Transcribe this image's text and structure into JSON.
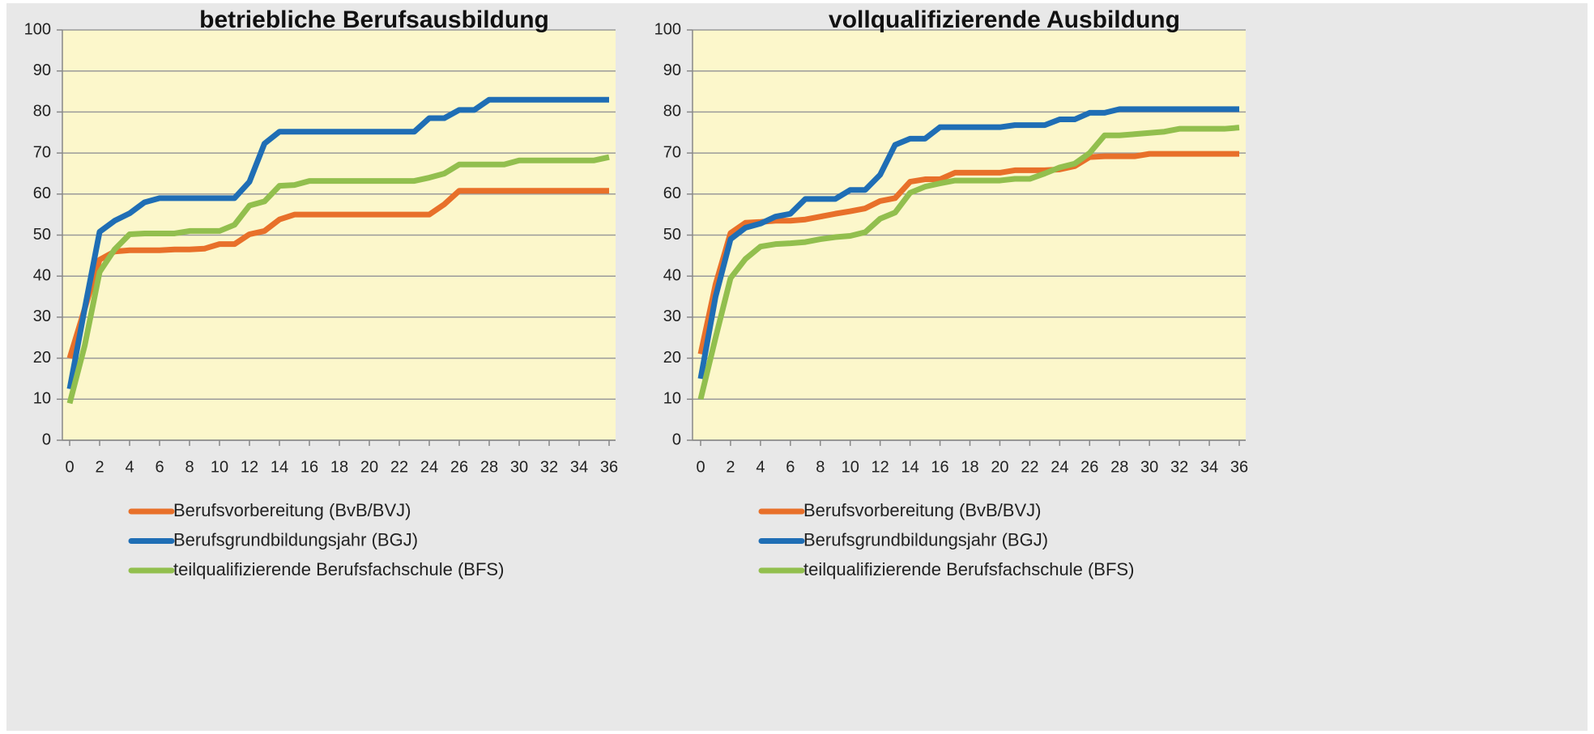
{
  "chart_data": [
    {
      "type": "line",
      "title": "betriebliche Berufsausbildung",
      "x": [
        0,
        1,
        2,
        3,
        4,
        5,
        6,
        7,
        8,
        9,
        10,
        11,
        12,
        13,
        14,
        15,
        16,
        17,
        18,
        19,
        20,
        21,
        22,
        23,
        24,
        25,
        26,
        27,
        28,
        29,
        30,
        31,
        32,
        33,
        34,
        35,
        36
      ],
      "xlim": [
        0,
        36
      ],
      "xticks": [
        0,
        2,
        4,
        6,
        8,
        10,
        12,
        14,
        16,
        18,
        20,
        22,
        24,
        26,
        28,
        30,
        32,
        34,
        36
      ],
      "ylim": [
        0,
        100
      ],
      "yticks": [
        0,
        10,
        20,
        30,
        40,
        50,
        60,
        70,
        80,
        90,
        100
      ],
      "grid": true,
      "series": [
        {
          "name": "Berufsvorbereitung (BvB/BVJ)",
          "color": "#e8702a",
          "values": [
            20,
            32,
            44,
            46,
            46.3,
            46.3,
            46.3,
            46.5,
            46.5,
            46.7,
            47.8,
            47.8,
            50.2,
            51,
            53.8,
            55,
            55,
            55,
            55,
            55,
            55,
            55,
            55,
            55,
            55,
            57.5,
            60.8,
            60.8,
            60.8,
            60.8,
            60.8,
            60.8,
            60.8,
            60.8,
            60.8,
            60.8,
            60.8
          ]
        },
        {
          "name": "Berufsgrundbildungsjahr (BGJ)",
          "color": "#1f6eb5",
          "values": [
            12.5,
            32,
            50.8,
            53.5,
            55.3,
            58,
            59,
            59,
            59,
            59,
            59,
            59,
            63,
            72.3,
            75.2,
            75.2,
            75.2,
            75.2,
            75.2,
            75.2,
            75.2,
            75.2,
            75.2,
            75.2,
            78.5,
            78.5,
            80.5,
            80.5,
            83,
            83,
            83,
            83,
            83,
            83,
            83,
            83,
            83
          ]
        },
        {
          "name": "teilqualifizierende Berufsfachschule (BFS)",
          "color": "#92bf4e",
          "values": [
            9,
            23,
            41,
            46.5,
            50.2,
            50.4,
            50.4,
            50.4,
            51,
            51,
            51,
            52.5,
            57.2,
            58.2,
            62,
            62.2,
            63.2,
            63.2,
            63.2,
            63.2,
            63.2,
            63.2,
            63.2,
            63.2,
            64,
            65,
            67.2,
            67.2,
            67.2,
            67.2,
            68.2,
            68.2,
            68.2,
            68.2,
            68.2,
            68.2,
            69
          ]
        }
      ]
    },
    {
      "type": "line",
      "title": "vollqualifizierende Ausbildung",
      "x": [
        0,
        1,
        2,
        3,
        4,
        5,
        6,
        7,
        8,
        9,
        10,
        11,
        12,
        13,
        14,
        15,
        16,
        17,
        18,
        19,
        20,
        21,
        22,
        23,
        24,
        25,
        26,
        27,
        28,
        29,
        30,
        31,
        32,
        33,
        34,
        35,
        36
      ],
      "xlim": [
        0,
        36
      ],
      "xticks": [
        0,
        2,
        4,
        6,
        8,
        10,
        12,
        14,
        16,
        18,
        20,
        22,
        24,
        26,
        28,
        30,
        32,
        34,
        36
      ],
      "ylim": [
        0,
        100
      ],
      "yticks": [
        0,
        10,
        20,
        30,
        40,
        50,
        60,
        70,
        80,
        90,
        100
      ],
      "grid": true,
      "series": [
        {
          "name": "Berufsvorbereitung (BvB/BVJ)",
          "color": "#e8702a",
          "values": [
            21,
            38,
            50.5,
            53,
            53.2,
            53.5,
            53.5,
            53.8,
            54.5,
            55.2,
            55.8,
            56.5,
            58.3,
            59,
            63,
            63.6,
            63.6,
            65.2,
            65.2,
            65.2,
            65.2,
            65.8,
            65.8,
            65.8,
            66,
            66.8,
            69,
            69.2,
            69.2,
            69.2,
            69.8,
            69.8,
            69.8,
            69.8,
            69.8,
            69.8,
            69.8
          ]
        },
        {
          "name": "Berufsgrundbildungsjahr (BGJ)",
          "color": "#1f6eb5",
          "values": [
            15,
            35,
            49,
            51.8,
            52.8,
            54.5,
            55.2,
            58.8,
            58.8,
            58.8,
            61,
            61,
            64.7,
            72,
            73.5,
            73.5,
            76.3,
            76.3,
            76.3,
            76.3,
            76.3,
            76.8,
            76.8,
            76.8,
            78.2,
            78.2,
            79.8,
            79.8,
            80.7,
            80.7,
            80.7,
            80.7,
            80.7,
            80.7,
            80.7,
            80.7,
            80.7
          ]
        },
        {
          "name": "teilqualifizierende Berufsfachschule (BFS)",
          "color": "#92bf4e",
          "values": [
            10,
            25,
            39.5,
            44.2,
            47.2,
            47.8,
            48,
            48.3,
            49,
            49.5,
            49.8,
            50.7,
            54,
            55.5,
            60.3,
            61.8,
            62.6,
            63.3,
            63.3,
            63.3,
            63.3,
            63.7,
            63.7,
            65,
            66.5,
            67.4,
            70,
            74.3,
            74.3,
            74.6,
            74.9,
            75.2,
            75.9,
            75.9,
            75.9,
            75.9,
            76.2
          ]
        }
      ]
    }
  ]
}
